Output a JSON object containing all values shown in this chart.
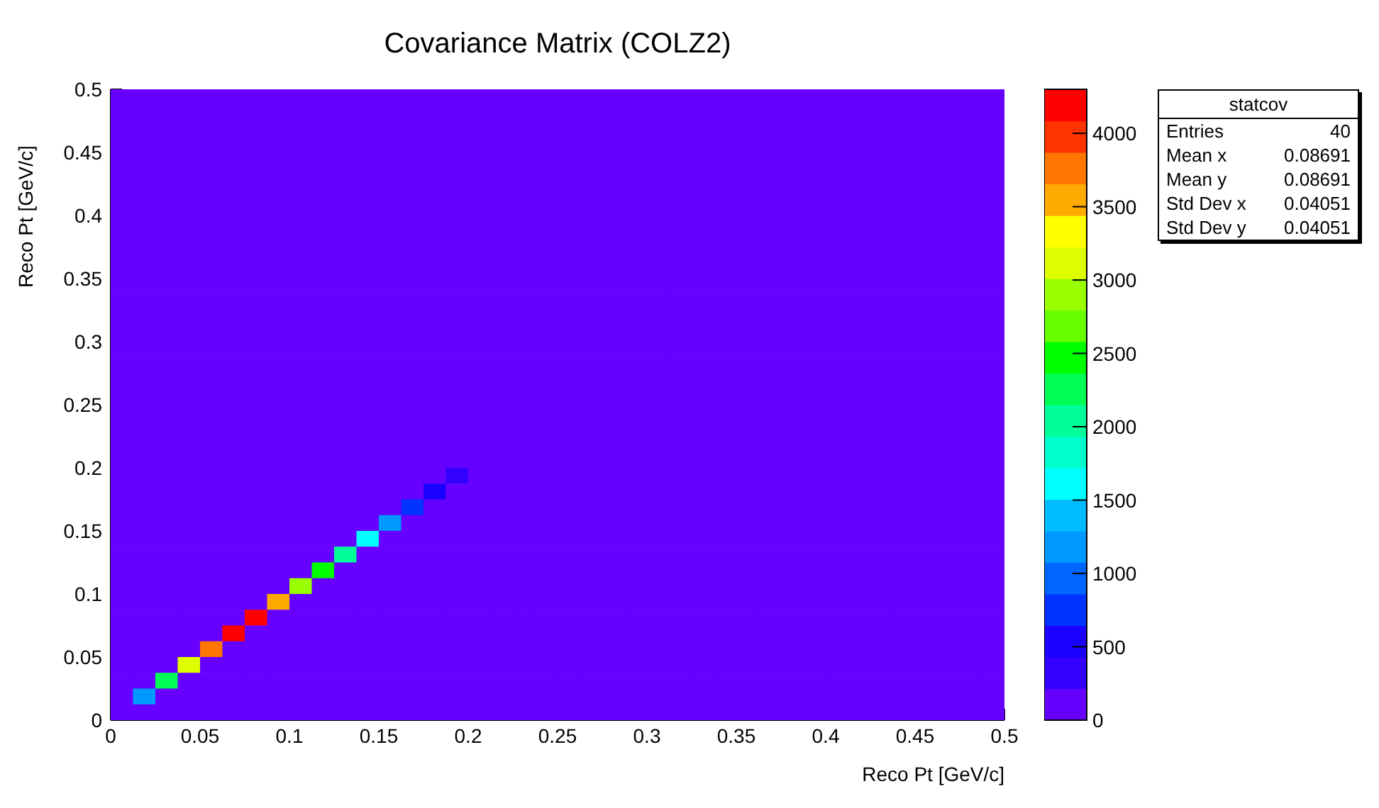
{
  "chart_data": {
    "type": "heatmap",
    "title": "Covariance Matrix (COLZ2)",
    "xlabel": "Reco Pt [GeV/c]",
    "ylabel": "Reco Pt [GeV/c]",
    "xlim": [
      0,
      0.5
    ],
    "xticks": [
      0,
      0.05,
      0.1,
      0.15,
      0.2,
      0.25,
      0.3,
      0.35,
      0.4,
      0.45,
      0.5
    ],
    "ylim": [
      0,
      0.5
    ],
    "yticks": [
      0,
      0.05,
      0.1,
      0.15,
      0.2,
      0.25,
      0.3,
      0.35,
      0.4,
      0.45,
      0.5
    ],
    "clim": [
      0,
      4300
    ],
    "cticks": [
      0,
      500,
      1000,
      1500,
      2000,
      2500,
      3000,
      3500,
      4000
    ],
    "annotations": [
      "statcov",
      "Entries",
      "40",
      "Mean x",
      "0.08691",
      "Mean y",
      "0.08691",
      "Std Dev x",
      "0.04051",
      "Std Dev y",
      "0.04051"
    ],
    "cells": [
      [
        0,
        0,
        0,
        0,
        0,
        0,
        0,
        0,
        0,
        0,
        0,
        0,
        0,
        0,
        0,
        0,
        0,
        0,
        0,
        0,
        0,
        0,
        0,
        0,
        0,
        0,
        0,
        0,
        0,
        0,
        0,
        0,
        0,
        0,
        0,
        0,
        0,
        0,
        0,
        0
      ],
      [
        0,
        0,
        0,
        0,
        0,
        0,
        0,
        0,
        0,
        0,
        0,
        0,
        0,
        0,
        0,
        0,
        0,
        0,
        0,
        0,
        0,
        0,
        0,
        0,
        0,
        0,
        0,
        0,
        0,
        0,
        0,
        0,
        0,
        0,
        0,
        0,
        0,
        0,
        0,
        0
      ],
      [
        0,
        0,
        0,
        0,
        0,
        0,
        0,
        0,
        0,
        0,
        0,
        0,
        0,
        0,
        0,
        0,
        0,
        0,
        0,
        0,
        0,
        0,
        0,
        0,
        0,
        0,
        0,
        0,
        0,
        0,
        0,
        0,
        0,
        0,
        0,
        0,
        0,
        0,
        0,
        0
      ],
      [
        0,
        0,
        0,
        0,
        0,
        0,
        0,
        0,
        0,
        0,
        0,
        0,
        0,
        0,
        0,
        0,
        0,
        0,
        0,
        0,
        0,
        0,
        0,
        0,
        0,
        0,
        0,
        0,
        0,
        0,
        0,
        0,
        0,
        0,
        0,
        0,
        0,
        0,
        0,
        0
      ],
      [
        0,
        0,
        0,
        0,
        0,
        0,
        0,
        0,
        0,
        0,
        0,
        0,
        0,
        0,
        0,
        0,
        0,
        0,
        0,
        0,
        0,
        0,
        0,
        0,
        0,
        0,
        0,
        0,
        0,
        0,
        0,
        0,
        0,
        0,
        0,
        0,
        0,
        0,
        0,
        0
      ],
      [
        0,
        0,
        0,
        0,
        0,
        0,
        0,
        0,
        0,
        0,
        0,
        0,
        0,
        0,
        0,
        0,
        0,
        0,
        0,
        0,
        0,
        0,
        0,
        0,
        0,
        0,
        0,
        0,
        0,
        0,
        0,
        0,
        0,
        0,
        0,
        0,
        0,
        0,
        0,
        0
      ],
      [
        0,
        0,
        0,
        0,
        0,
        0,
        0,
        0,
        0,
        0,
        0,
        0,
        0,
        0,
        0,
        0,
        0,
        0,
        0,
        0,
        0,
        0,
        0,
        0,
        0,
        0,
        0,
        0,
        0,
        0,
        0,
        0,
        0,
        0,
        0,
        0,
        0,
        0,
        0,
        0
      ],
      [
        0,
        0,
        0,
        0,
        0,
        0,
        0,
        0,
        0,
        0,
        0,
        0,
        0,
        0,
        0,
        0,
        0,
        0,
        0,
        0,
        0,
        0,
        0,
        0,
        0,
        0,
        0,
        0,
        0,
        0,
        0,
        0,
        0,
        0,
        0,
        0,
        0,
        0,
        0,
        0
      ],
      [
        0,
        0,
        0,
        0,
        0,
        0,
        0,
        0,
        0,
        0,
        0,
        0,
        0,
        0,
        0,
        0,
        0,
        0,
        0,
        0,
        0,
        0,
        0,
        0,
        0,
        0,
        0,
        0,
        0,
        0,
        0,
        0,
        0,
        0,
        0,
        0,
        0,
        0,
        0,
        0
      ],
      [
        0,
        0,
        0,
        0,
        0,
        0,
        0,
        0,
        0,
        0,
        0,
        0,
        0,
        0,
        0,
        0,
        0,
        0,
        0,
        0,
        0,
        0,
        0,
        0,
        0,
        0,
        0,
        0,
        0,
        0,
        0,
        0,
        0,
        0,
        0,
        0,
        0,
        0,
        0,
        0
      ],
      [
        0,
        0,
        0,
        0,
        0,
        0,
        0,
        0,
        0,
        0,
        0,
        0,
        0,
        0,
        0,
        0,
        0,
        0,
        0,
        0,
        0,
        0,
        0,
        0,
        0,
        0,
        0,
        0,
        0,
        0,
        0,
        0,
        0,
        0,
        0,
        0,
        0,
        0,
        0,
        0
      ],
      [
        0,
        0,
        0,
        0,
        0,
        0,
        0,
        0,
        0,
        0,
        0,
        0,
        0,
        0,
        0,
        0,
        0,
        0,
        0,
        0,
        0,
        0,
        0,
        0,
        0,
        0,
        0,
        0,
        0,
        0,
        0,
        0,
        0,
        0,
        0,
        0,
        0,
        0,
        0,
        0
      ],
      [
        0,
        0,
        0,
        0,
        0,
        0,
        0,
        0,
        0,
        0,
        0,
        0,
        0,
        0,
        0,
        0,
        0,
        0,
        0,
        0,
        0,
        0,
        0,
        0,
        0,
        0,
        0,
        0,
        0,
        0,
        0,
        0,
        0,
        0,
        0,
        0,
        0,
        0,
        0,
        0
      ],
      [
        0,
        0,
        0,
        0,
        0,
        0,
        0,
        0,
        0,
        0,
        0,
        0,
        0,
        0,
        0,
        0,
        0,
        0,
        0,
        0,
        0,
        0,
        0,
        0,
        0,
        0,
        0,
        0,
        0,
        0,
        0,
        0,
        0,
        0,
        0,
        0,
        0,
        0,
        0,
        0
      ],
      [
        0,
        0,
        0,
        0,
        0,
        0,
        0,
        0,
        0,
        0,
        0,
        0,
        0,
        0,
        0,
        0,
        0,
        0,
        0,
        0,
        0,
        0,
        0,
        0,
        0,
        0,
        0,
        0,
        0,
        0,
        0,
        0,
        0,
        0,
        0,
        0,
        0,
        0,
        0,
        0
      ],
      [
        0,
        0,
        0,
        0,
        0,
        0,
        0,
        0,
        0,
        0,
        0,
        0,
        0,
        0,
        0,
        0,
        0,
        0,
        0,
        0,
        0,
        0,
        0,
        0,
        0,
        0,
        0,
        0,
        0,
        0,
        0,
        0,
        0,
        0,
        0,
        0,
        0,
        0,
        0,
        0
      ],
      [
        0,
        0,
        0,
        0,
        0,
        0,
        0,
        0,
        0,
        0,
        0,
        0,
        0,
        0,
        0,
        0,
        0,
        0,
        0,
        0,
        0,
        0,
        0,
        0,
        0,
        0,
        0,
        0,
        0,
        0,
        0,
        0,
        0,
        0,
        0,
        0,
        0,
        0,
        0,
        0
      ],
      [
        0,
        0,
        0,
        0,
        0,
        0,
        0,
        0,
        0,
        0,
        0,
        0,
        0,
        0,
        0,
        0,
        0,
        0,
        0,
        0,
        0,
        0,
        0,
        0,
        0,
        0,
        0,
        0,
        0,
        0,
        0,
        0,
        0,
        0,
        0,
        0,
        0,
        0,
        0,
        0
      ],
      [
        0,
        0,
        0,
        0,
        0,
        0,
        0,
        0,
        0,
        0,
        0,
        0,
        0,
        0,
        0,
        0,
        0,
        0,
        0,
        0,
        0,
        0,
        0,
        0,
        0,
        0,
        0,
        0,
        0,
        0,
        0,
        0,
        0,
        0,
        0,
        0,
        0,
        0,
        0,
        0
      ],
      [
        0,
        0,
        0,
        0,
        0,
        0,
        0,
        0,
        0,
        0,
        0,
        0,
        0,
        0,
        0,
        0,
        0,
        0,
        0,
        0,
        0,
        0,
        0,
        0,
        0,
        0,
        0,
        0,
        0,
        0,
        0,
        0,
        0,
        0,
        0,
        0,
        0,
        0,
        0,
        0
      ],
      [
        0,
        0,
        0,
        0,
        0,
        0,
        0,
        0,
        0,
        0,
        0,
        0,
        0,
        0,
        0,
        0,
        0,
        0,
        0,
        0,
        0,
        0,
        0,
        0,
        0,
        0,
        0,
        0,
        0,
        0,
        0,
        0,
        0,
        0,
        0,
        0,
        0,
        0,
        0,
        0
      ],
      [
        0,
        0,
        0,
        0,
        0,
        0,
        0,
        0,
        0,
        0,
        0,
        0,
        0,
        0,
        0,
        0,
        0,
        0,
        0,
        0,
        0,
        0,
        0,
        0,
        0,
        0,
        0,
        0,
        0,
        0,
        0,
        0,
        0,
        0,
        0,
        0,
        0,
        0,
        0,
        0
      ],
      [
        0,
        0,
        0,
        0,
        0,
        0,
        0,
        0,
        0,
        0,
        0,
        0,
        0,
        0,
        0,
        0,
        0,
        0,
        0,
        0,
        0,
        0,
        0,
        0,
        0,
        0,
        0,
        0,
        0,
        0,
        0,
        0,
        0,
        0,
        0,
        0,
        0,
        0,
        0,
        0
      ],
      [
        0,
        0,
        0,
        0,
        0,
        0,
        0,
        0,
        0,
        0,
        0,
        0,
        0,
        0,
        0,
        0,
        0,
        0,
        0,
        0,
        0,
        0,
        0,
        0,
        0,
        0,
        0,
        0,
        0,
        0,
        0,
        0,
        0,
        0,
        0,
        0,
        0,
        0,
        0,
        0
      ],
      [
        0,
        0,
        0,
        0,
        0,
        0,
        0,
        0,
        0,
        0,
        0,
        0,
        0,
        0,
        0,
        300,
        0,
        0,
        0,
        0,
        0,
        0,
        0,
        0,
        0,
        0,
        0,
        0,
        0,
        0,
        0,
        0,
        0,
        0,
        0,
        0,
        0,
        0,
        0,
        0
      ],
      [
        0,
        0,
        0,
        0,
        0,
        0,
        0,
        0,
        0,
        0,
        0,
        0,
        0,
        0,
        450,
        0,
        0,
        0,
        0,
        0,
        0,
        0,
        0,
        0,
        0,
        0,
        0,
        0,
        0,
        0,
        0,
        0,
        0,
        0,
        0,
        0,
        0,
        0,
        0,
        0
      ],
      [
        0,
        0,
        0,
        0,
        0,
        0,
        0,
        0,
        0,
        0,
        0,
        0,
        0,
        750,
        0,
        0,
        0,
        0,
        0,
        0,
        0,
        0,
        0,
        0,
        0,
        0,
        0,
        0,
        0,
        0,
        0,
        0,
        0,
        0,
        0,
        0,
        0,
        0,
        0,
        0
      ],
      [
        0,
        0,
        0,
        0,
        0,
        0,
        0,
        0,
        0,
        0,
        0,
        0,
        1200,
        0,
        0,
        0,
        0,
        0,
        0,
        0,
        0,
        0,
        0,
        0,
        0,
        0,
        0,
        0,
        0,
        0,
        0,
        0,
        0,
        0,
        0,
        0,
        0,
        0,
        0,
        0
      ],
      [
        0,
        0,
        0,
        0,
        0,
        0,
        0,
        0,
        0,
        0,
        0,
        1600,
        0,
        0,
        0,
        0,
        0,
        0,
        0,
        0,
        0,
        0,
        0,
        0,
        0,
        0,
        0,
        0,
        0,
        0,
        0,
        0,
        0,
        0,
        0,
        0,
        0,
        0,
        0,
        0
      ],
      [
        0,
        0,
        0,
        0,
        0,
        0,
        0,
        0,
        0,
        0,
        2000,
        0,
        0,
        0,
        0,
        0,
        0,
        0,
        0,
        0,
        0,
        0,
        0,
        0,
        0,
        0,
        0,
        0,
        0,
        0,
        0,
        0,
        0,
        0,
        0,
        0,
        0,
        0,
        0,
        0
      ],
      [
        0,
        0,
        0,
        0,
        0,
        0,
        0,
        0,
        0,
        2450,
        0,
        0,
        0,
        0,
        0,
        0,
        0,
        0,
        0,
        0,
        0,
        0,
        0,
        0,
        0,
        0,
        0,
        0,
        0,
        0,
        0,
        0,
        0,
        0,
        0,
        0,
        0,
        0,
        0,
        0
      ],
      [
        0,
        0,
        0,
        0,
        0,
        0,
        0,
        0,
        2900,
        0,
        0,
        0,
        0,
        0,
        0,
        0,
        0,
        0,
        0,
        0,
        0,
        0,
        0,
        0,
        0,
        0,
        0,
        0,
        0,
        0,
        0,
        0,
        0,
        0,
        0,
        0,
        0,
        0,
        0,
        0
      ],
      [
        0,
        0,
        0,
        0,
        0,
        0,
        0,
        3550,
        0,
        0,
        0,
        0,
        0,
        0,
        0,
        0,
        0,
        0,
        0,
        0,
        0,
        0,
        0,
        0,
        0,
        0,
        0,
        0,
        0,
        0,
        0,
        0,
        0,
        0,
        0,
        0,
        0,
        0,
        0,
        0
      ],
      [
        0,
        0,
        0,
        0,
        0,
        0,
        4200,
        0,
        0,
        0,
        0,
        0,
        0,
        0,
        0,
        0,
        0,
        0,
        0,
        0,
        0,
        0,
        0,
        0,
        0,
        0,
        0,
        0,
        0,
        0,
        0,
        0,
        0,
        0,
        0,
        0,
        0,
        0,
        0,
        0
      ],
      [
        0,
        0,
        0,
        0,
        0,
        4200,
        0,
        0,
        0,
        0,
        0,
        0,
        0,
        0,
        0,
        0,
        0,
        0,
        0,
        0,
        0,
        0,
        0,
        0,
        0,
        0,
        0,
        0,
        0,
        0,
        0,
        0,
        0,
        0,
        0,
        0,
        0,
        0,
        0,
        0
      ],
      [
        0,
        0,
        0,
        0,
        3800,
        0,
        0,
        0,
        0,
        0,
        0,
        0,
        0,
        0,
        0,
        0,
        0,
        0,
        0,
        0,
        0,
        0,
        0,
        0,
        0,
        0,
        0,
        0,
        0,
        0,
        0,
        0,
        0,
        0,
        0,
        0,
        0,
        0,
        0,
        0
      ],
      [
        0,
        0,
        0,
        3100,
        0,
        0,
        0,
        0,
        0,
        0,
        0,
        0,
        0,
        0,
        0,
        0,
        0,
        0,
        0,
        0,
        0,
        0,
        0,
        0,
        0,
        0,
        0,
        0,
        0,
        0,
        0,
        0,
        0,
        0,
        0,
        0,
        0,
        0,
        0,
        0
      ],
      [
        0,
        0,
        2300,
        0,
        0,
        0,
        0,
        0,
        0,
        0,
        0,
        0,
        0,
        0,
        0,
        0,
        0,
        0,
        0,
        0,
        0,
        0,
        0,
        0,
        0,
        0,
        0,
        0,
        0,
        0,
        0,
        0,
        0,
        0,
        0,
        0,
        0,
        0,
        0,
        0
      ],
      [
        0,
        1200,
        0,
        0,
        0,
        0,
        0,
        0,
        0,
        0,
        0,
        0,
        0,
        0,
        0,
        0,
        0,
        0,
        0,
        0,
        0,
        0,
        0,
        0,
        0,
        0,
        0,
        0,
        0,
        0,
        0,
        0,
        0,
        0,
        0,
        0,
        0,
        0,
        0,
        0
      ],
      [
        0,
        0,
        0,
        0,
        0,
        0,
        0,
        0,
        0,
        0,
        0,
        0,
        0,
        0,
        0,
        0,
        0,
        0,
        0,
        0,
        0,
        0,
        0,
        0,
        0,
        0,
        0,
        0,
        0,
        0,
        0,
        0,
        0,
        0,
        0,
        0,
        0,
        0,
        0,
        0
      ]
    ]
  }
}
